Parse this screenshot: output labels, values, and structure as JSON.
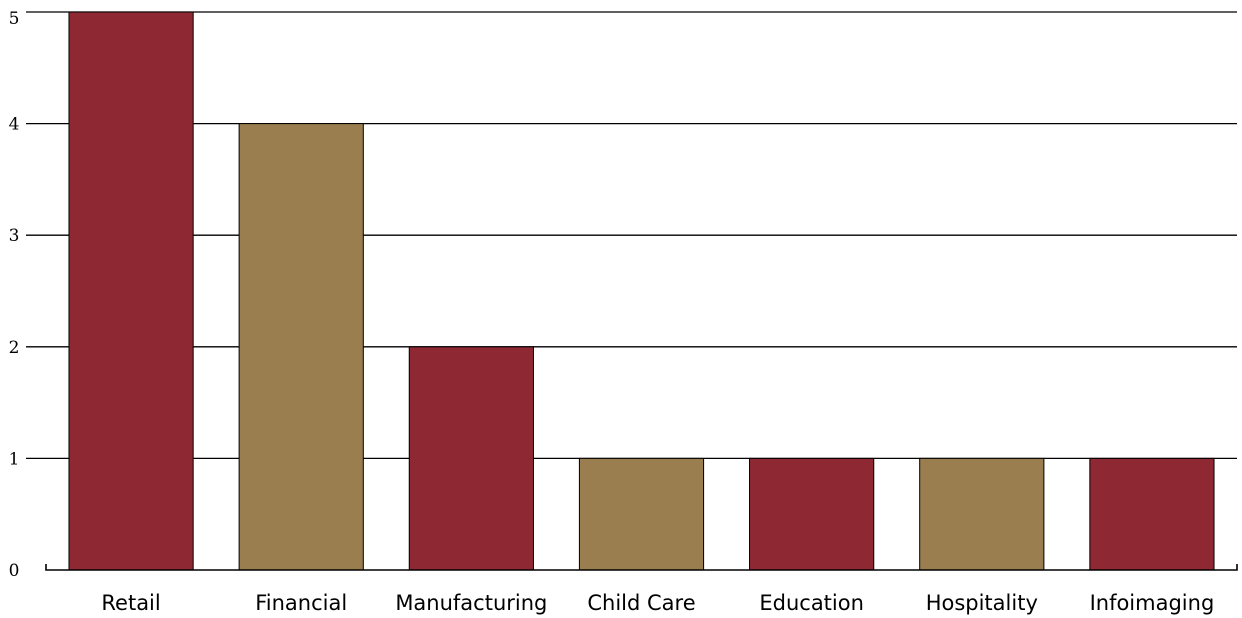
{
  "chart_data": {
    "type": "bar",
    "categories": [
      "Retail",
      "Financial",
      "Manufacturing",
      "Child Care",
      "Education",
      "Hospitality",
      "Infoimaging"
    ],
    "values": [
      5,
      4,
      2,
      1,
      1,
      1,
      1
    ],
    "ylim": [
      0,
      5
    ],
    "yticks": [
      "0",
      "1",
      "2",
      "3",
      "4",
      "5"
    ],
    "grid": true,
    "legend": "none",
    "colors": [
      "#8e2934",
      "#9a7e4f",
      "#8e2934",
      "#9a7e4f",
      "#8e2934",
      "#9a7e4f",
      "#8e2934"
    ]
  }
}
